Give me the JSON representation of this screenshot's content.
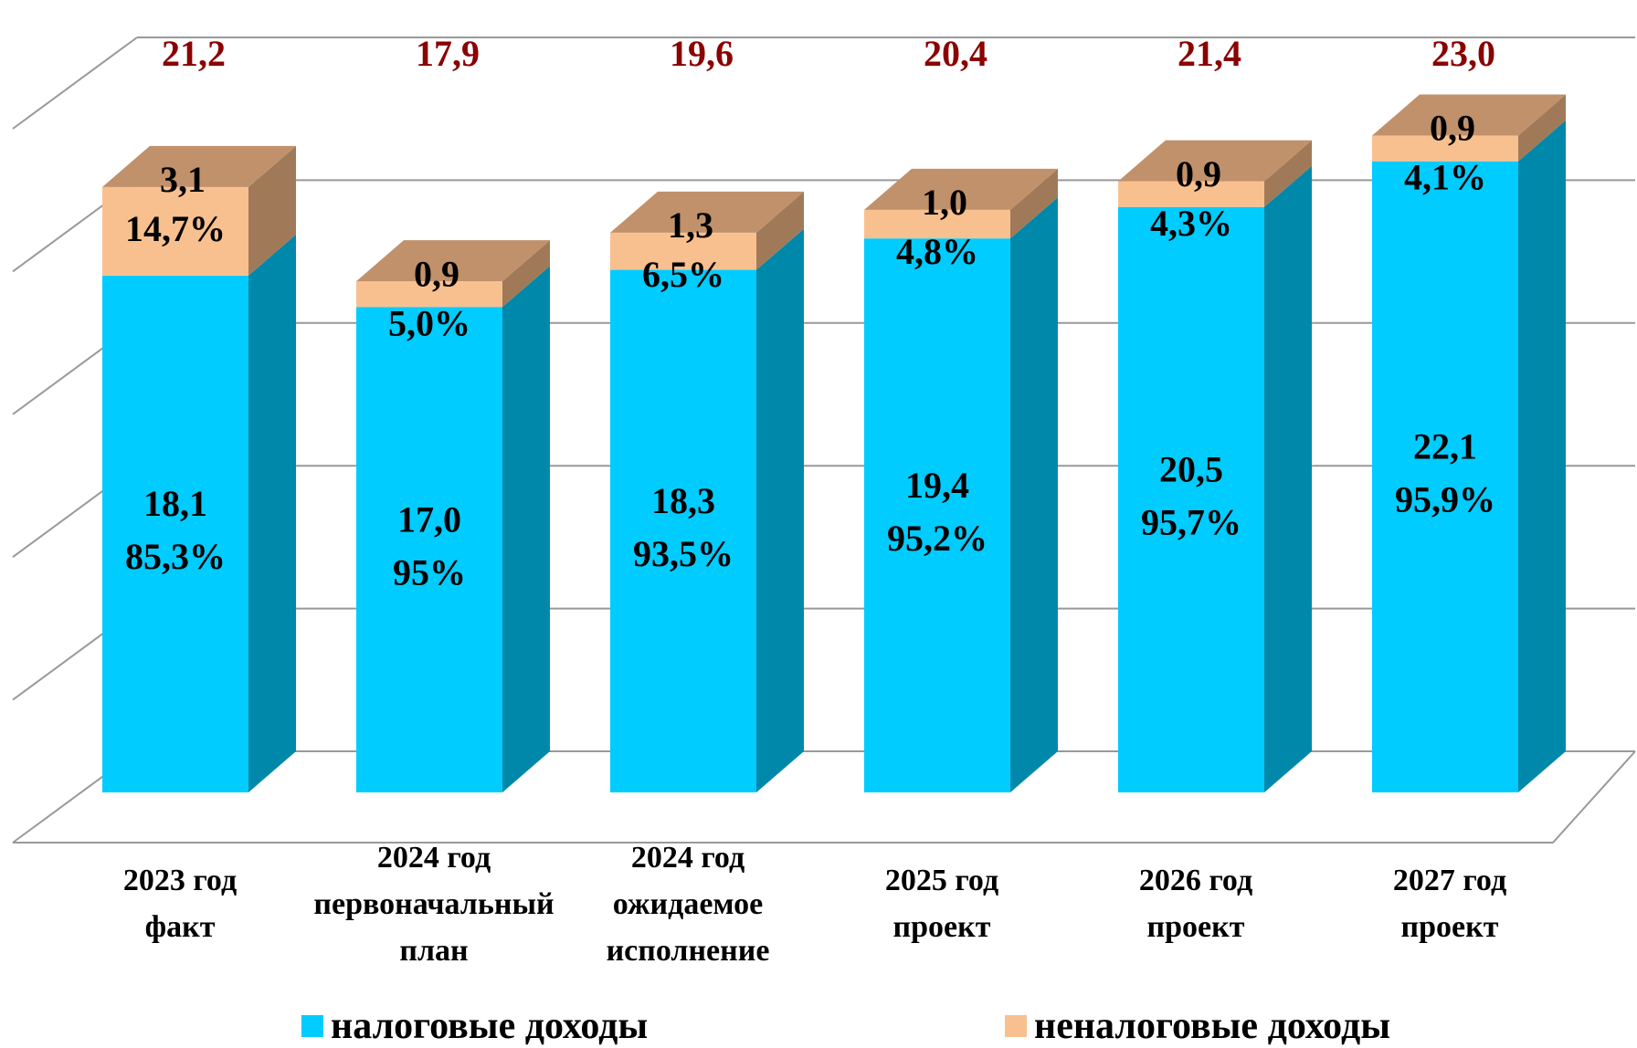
{
  "chart_data": {
    "type": "bar3d_stacked",
    "categories": [
      "2023 год\nфакт",
      "2024 год\nпервоначальный\nплан",
      "2024 год\nожидаемое\nисполнение",
      "2025 год\nпроект",
      "2026 год\nпроект",
      "2027 год\nпроект"
    ],
    "series": [
      {
        "name": "налоговые доходы",
        "color": "#00ccff",
        "side_color": "#0088aa",
        "top_color": "#33a9c9",
        "values": [
          18.1,
          17.0,
          18.3,
          19.4,
          20.5,
          22.1
        ],
        "value_labels": [
          "18,1",
          "17,0",
          "18,3",
          "19,4",
          "20,5",
          "22,1"
        ],
        "shares": [
          85.3,
          95,
          93.5,
          95.2,
          95.7,
          95.9
        ],
        "share_labels": [
          "85,3%",
          "95%",
          "93,5%",
          "95,2%",
          "95,7%",
          "95,9%"
        ]
      },
      {
        "name": "неналоговые доходы",
        "color": "#f9c08f",
        "side_color": "#a07a58",
        "top_color": "#c1916b",
        "values": [
          3.1,
          0.9,
          1.3,
          1.0,
          0.9,
          0.9
        ],
        "value_labels": [
          "3,1",
          "0,9",
          "1,3",
          "1,0",
          "0,9",
          "0,9"
        ],
        "shares": [
          14.7,
          5.0,
          6.5,
          4.8,
          4.3,
          4.1
        ],
        "share_labels": [
          "14,7%",
          "5,0%",
          "6,5%",
          "4,8%",
          "4,3%",
          "4,1%"
        ]
      }
    ],
    "totals": [
      21.2,
      17.9,
      19.6,
      20.4,
      21.4,
      23.0
    ],
    "total_labels": [
      "21,2",
      "17,9",
      "19,6",
      "20,4",
      "21,4",
      "23,0"
    ],
    "total_color": "#8b0000",
    "ylim": [
      0,
      25
    ],
    "yticks": [
      0,
      5,
      10,
      15,
      20,
      25
    ],
    "grid": true
  }
}
